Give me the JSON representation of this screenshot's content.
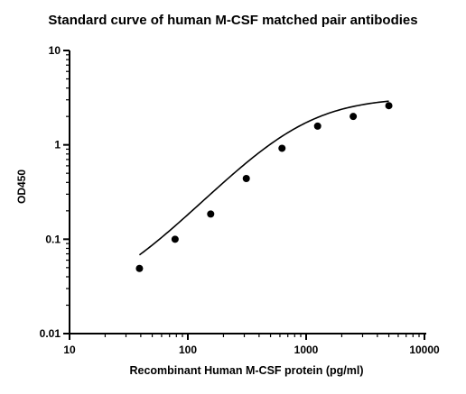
{
  "chart_data": {
    "type": "scatter",
    "title": "Standard curve of human M-CSF matched pair antibodies",
    "xlabel": "Recombinant Human M-CSF protein (pg/ml)",
    "ylabel": "OD450",
    "xscale": "log",
    "yscale": "log",
    "xlim": [
      10,
      10000
    ],
    "ylim": [
      0.01,
      10
    ],
    "xticks": [
      "10",
      "100",
      "1000",
      "10000"
    ],
    "yticks": [
      "0.01",
      "0.1",
      "1",
      "10"
    ],
    "grid": false,
    "legend": "none",
    "colors": {
      "marker": "#000000",
      "curve": "#000000",
      "axis": "#000000"
    },
    "series": [
      {
        "x": [
          39,
          78,
          156,
          312,
          625,
          1250,
          2500,
          5000
        ],
        "y": [
          0.049,
          0.1,
          0.185,
          0.44,
          0.92,
          1.58,
          2.0,
          2.6
        ],
        "fit": "4PL"
      }
    ],
    "fit_params": {
      "bottom": 0.02,
      "top": 3.2,
      "ec50": 900,
      "hill": 1.33
    }
  }
}
